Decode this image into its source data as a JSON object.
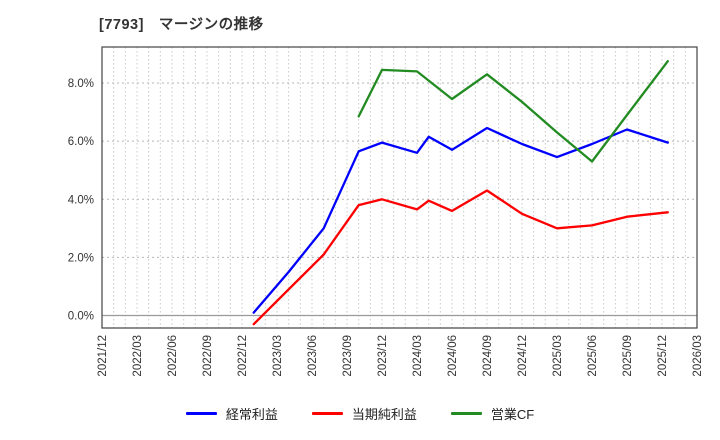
{
  "title": "[7793]　マージンの推移",
  "chart_data": {
    "type": "line",
    "title": "[7793]　マージンの推移",
    "x_unit": "months since 2021/12",
    "xlim_months": [
      0,
      51
    ],
    "x_tick_interval_months": 3,
    "x_tick_labels": [
      "2021/12",
      "2022/03",
      "2022/06",
      "2022/09",
      "2022/12",
      "2023/03",
      "2023/06",
      "2023/09",
      "2023/12",
      "2024/03",
      "2024/06",
      "2024/09",
      "2024/12",
      "2025/03",
      "2025/06",
      "2025/09",
      "2025/12",
      "2026/03"
    ],
    "y_ticks": [
      {
        "value": 0,
        "label": "0.0%"
      },
      {
        "value": 2,
        "label": "2.0%"
      },
      {
        "value": 4,
        "label": "4.0%"
      },
      {
        "value": 6,
        "label": "6.0%"
      },
      {
        "value": 8,
        "label": "8.0%"
      }
    ],
    "ylim": [
      -0.45,
      9.25
    ],
    "grid": {
      "vertical": "dotted, monthly",
      "horizontal": "dotted at y ticks",
      "zero_line": "solid gray"
    },
    "legend_position": "bottom",
    "series": [
      {
        "id": "ordinary-profit",
        "name": "経常利益",
        "color": "#0000ff",
        "points": [
          [
            13,
            0.1
          ],
          [
            16,
            1.5
          ],
          [
            19,
            3.0
          ],
          [
            22,
            5.65
          ],
          [
            24,
            5.95
          ],
          [
            27,
            5.6
          ],
          [
            28,
            6.15
          ],
          [
            30,
            5.7
          ],
          [
            33,
            6.45
          ],
          [
            36,
            5.9
          ],
          [
            39,
            5.45
          ],
          [
            42,
            5.9
          ],
          [
            45,
            6.4
          ],
          [
            48.5,
            5.95
          ]
        ]
      },
      {
        "id": "net-income",
        "name": "当期純利益",
        "color": "#ff0000",
        "points": [
          [
            13,
            -0.3
          ],
          [
            16,
            0.9
          ],
          [
            19,
            2.1
          ],
          [
            22,
            3.8
          ],
          [
            24,
            4.0
          ],
          [
            27,
            3.65
          ],
          [
            28,
            3.95
          ],
          [
            30,
            3.6
          ],
          [
            33,
            4.3
          ],
          [
            36,
            3.5
          ],
          [
            39,
            3.0
          ],
          [
            42,
            3.1
          ],
          [
            45,
            3.4
          ],
          [
            48.5,
            3.55
          ]
        ]
      },
      {
        "id": "operating-cf",
        "name": "営業CF",
        "color": "#228b22",
        "points": [
          [
            22,
            6.85
          ],
          [
            24,
            8.45
          ],
          [
            27,
            8.4
          ],
          [
            30,
            7.45
          ],
          [
            33,
            8.3
          ],
          [
            36,
            7.35
          ],
          [
            39,
            6.3
          ],
          [
            42,
            5.3
          ],
          [
            45,
            6.9
          ],
          [
            48.5,
            8.75
          ]
        ]
      }
    ],
    "style": {
      "text_color": "#333333",
      "border_color": "#444444",
      "grid_color_vertical": "#c9c9c9",
      "grid_color_horizontal": "#b5b5b5",
      "zero_line_color": "#9a9a9a",
      "background": "#ffffff"
    }
  }
}
